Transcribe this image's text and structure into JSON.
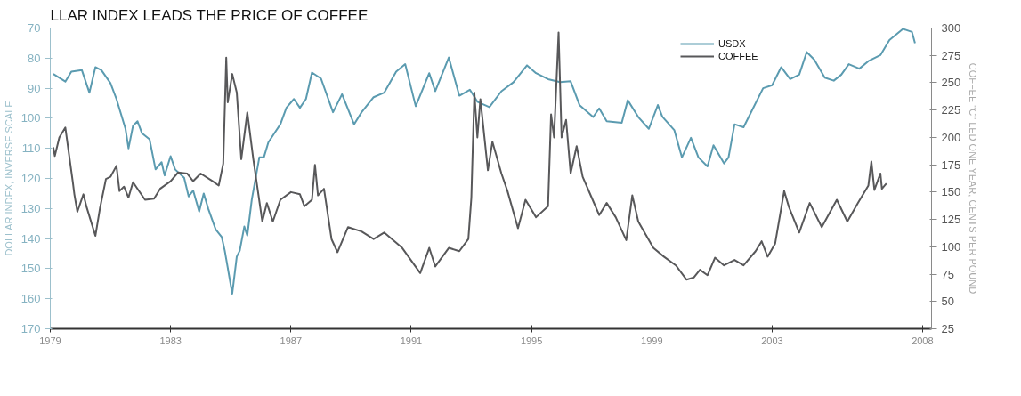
{
  "chart_data": {
    "type": "line",
    "title": "LLAR INDEX LEADS THE PRICE OF COFFEE",
    "ylabel": "DOLLAR INDEX, INVERSE SCALE",
    "y2label": "COFFEE \"C\" LED ONE YEAR, CENTS PER POUND",
    "xlim": [
      1979,
      2008.3
    ],
    "xticks": [
      1979,
      1983,
      1987,
      1991,
      1995,
      1999,
      2003,
      2008
    ],
    "ylim": [
      170,
      70
    ],
    "yticks": [
      70,
      80,
      90,
      100,
      110,
      120,
      130,
      140,
      150,
      160,
      170
    ],
    "y2lim": [
      25,
      300
    ],
    "y2ticks": [
      25,
      50,
      75,
      100,
      125,
      150,
      175,
      200,
      225,
      250,
      275,
      300
    ],
    "grid": false,
    "legend": "top right",
    "series": [
      {
        "name": "USDX",
        "color": "#5b9bb0",
        "x": [
          1979.1,
          1979.5,
          1979.7,
          1980.05,
          1980.3,
          1980.5,
          1980.7,
          1981.0,
          1981.2,
          1981.5,
          1981.6,
          1981.75,
          1981.9,
          1982.05,
          1982.3,
          1982.5,
          1982.7,
          1982.8,
          1983.0,
          1983.15,
          1983.45,
          1983.6,
          1983.75,
          1983.95,
          1984.1,
          1984.25,
          1984.5,
          1984.7,
          1984.8,
          1985.05,
          1985.2,
          1985.3,
          1985.45,
          1985.55,
          1985.7,
          1985.95,
          1986.1,
          1986.25,
          1986.45,
          1986.65,
          1986.85,
          1987.1,
          1987.3,
          1987.5,
          1987.7,
          1988.0,
          1988.4,
          1988.7,
          1989.1,
          1989.35,
          1989.75,
          1990.1,
          1990.5,
          1990.8,
          1991.15,
          1991.6,
          1991.8,
          1992.25,
          1992.6,
          1992.95,
          1993.2,
          1993.6,
          1994.0,
          1994.4,
          1994.85,
          1995.15,
          1995.55,
          1995.95,
          1996.3,
          1996.6,
          1997.05,
          1997.25,
          1997.5,
          1998.0,
          1998.2,
          1998.55,
          1998.9,
          1999.2,
          1999.35,
          1999.75,
          2000.0,
          2000.3,
          2000.55,
          2000.85,
          2001.05,
          2001.4,
          2001.55,
          2001.75,
          2002.05,
          2002.35,
          2002.7,
          2003.0,
          2003.3,
          2003.6,
          2003.9,
          2004.15,
          2004.4,
          2004.75,
          2005.05,
          2005.3,
          2005.55,
          2005.9,
          2006.2,
          2006.6,
          2006.9,
          2007.35,
          2007.65,
          2007.75
        ],
        "values": [
          85.3,
          87.8,
          84.5,
          84,
          91.5,
          83,
          84,
          88.3,
          93.6,
          103.5,
          110,
          102.5,
          101,
          105,
          107,
          117,
          114.6,
          119,
          112.6,
          117,
          119.8,
          126,
          124,
          131,
          125,
          130,
          137,
          139.5,
          144,
          158.3,
          146,
          144,
          136,
          139,
          127,
          113,
          113,
          108,
          105,
          102,
          96.5,
          93.6,
          96.5,
          93.6,
          84.8,
          86.8,
          98,
          92,
          102,
          98,
          93,
          91.5,
          84.5,
          82,
          96,
          85,
          91,
          79.8,
          92.5,
          90.5,
          94.5,
          96.3,
          91,
          88,
          82.4,
          85,
          87,
          88,
          87.7,
          95.7,
          99.6,
          96.7,
          101,
          101.5,
          94,
          99.6,
          103.5,
          95.6,
          99.5,
          104,
          113,
          106.5,
          113,
          116,
          109,
          115,
          113,
          102,
          103,
          97,
          90,
          89,
          83,
          87,
          85.5,
          78,
          80.5,
          86.5,
          87.5,
          85.5,
          82,
          83.5,
          81,
          79,
          74,
          70.3,
          71.3,
          75
        ]
      },
      {
        "name": "COFFEE",
        "color": "#58585a",
        "axis": "y2",
        "x": [
          1979.1,
          1979.15,
          1979.3,
          1979.5,
          1979.75,
          1979.8,
          1979.9,
          1980.1,
          1980.2,
          1980.5,
          1980.65,
          1980.85,
          1981.0,
          1981.2,
          1981.3,
          1981.45,
          1981.6,
          1981.75,
          1982.15,
          1982.45,
          1982.65,
          1983.0,
          1983.25,
          1983.55,
          1983.75,
          1984.0,
          1984.4,
          1984.6,
          1984.75,
          1984.85,
          1984.9,
          1985.05,
          1985.2,
          1985.35,
          1985.55,
          1985.75,
          1986.05,
          1986.2,
          1986.4,
          1986.65,
          1987.0,
          1987.3,
          1987.45,
          1987.7,
          1987.8,
          1987.9,
          1988.1,
          1988.35,
          1988.55,
          1988.9,
          1989.35,
          1989.75,
          1990.1,
          1990.7,
          1991.3,
          1991.6,
          1991.8,
          1992.25,
          1992.6,
          1992.9,
          1993.0,
          1993.1,
          1993.2,
          1993.3,
          1993.55,
          1993.7,
          1994.0,
          1994.2,
          1994.55,
          1994.8,
          1995.15,
          1995.55,
          1995.65,
          1995.75,
          1995.9,
          1996.0,
          1996.15,
          1996.3,
          1996.5,
          1996.7,
          1997.0,
          1997.25,
          1997.5,
          1997.8,
          1998.15,
          1998.35,
          1998.55,
          1999.05,
          1999.4,
          1999.8,
          2000.15,
          2000.4,
          2000.6,
          2000.85,
          2001.1,
          2001.4,
          2001.75,
          2002.05,
          2002.45,
          2002.65,
          2002.85,
          2003.1,
          2003.4,
          2003.55,
          2003.9,
          2004.25,
          2004.65,
          2005.15,
          2005.5,
          2005.85,
          2006.2,
          2006.3,
          2006.4,
          2006.6,
          2006.65,
          2006.8
        ],
        "values": [
          191,
          183,
          200,
          209,
          159,
          148,
          132,
          148,
          137,
          110,
          135,
          162,
          164,
          174,
          151,
          155,
          145,
          159,
          143,
          144,
          153,
          160,
          168,
          167,
          160,
          167,
          160,
          156,
          176,
          273,
          232,
          258,
          241,
          180,
          223,
          180,
          123,
          140,
          123,
          143,
          150,
          148,
          137,
          143,
          175,
          147,
          153,
          107,
          95,
          118,
          114,
          107,
          113,
          99,
          76,
          99,
          82,
          99,
          96,
          107,
          145,
          241,
          200,
          235,
          170,
          196,
          167,
          151,
          117,
          143,
          127,
          137,
          221,
          200,
          296,
          200,
          216,
          167,
          192,
          164,
          145,
          129,
          140,
          127,
          106,
          147,
          123,
          99,
          91,
          83,
          70,
          72,
          79,
          74,
          90,
          83,
          88,
          83,
          96,
          105,
          91,
          103,
          151,
          137,
          113,
          140,
          118,
          143,
          123,
          140,
          156,
          178,
          152,
          167,
          153,
          158
        ]
      }
    ]
  }
}
